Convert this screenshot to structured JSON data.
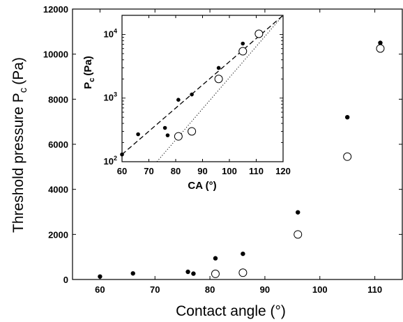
{
  "chart_data": [
    {
      "type": "scatter",
      "xlabel": "Contact angle (°)",
      "ylabel_main": "Threshold pressure P",
      "ylabel_sub": "c",
      "ylabel_unit": "(Pa)",
      "xlim": [
        55,
        115
      ],
      "ylim": [
        0,
        12000
      ],
      "xticks": [
        60,
        70,
        80,
        90,
        100,
        110
      ],
      "yticks": [
        0,
        2000,
        4000,
        6000,
        8000,
        10000,
        12000
      ],
      "series": [
        {
          "marker": "filled",
          "x": [
            60,
            66,
            76,
            77,
            81,
            86,
            96,
            105,
            111
          ],
          "y": [
            130,
            270,
            340,
            260,
            940,
            1140,
            2980,
            7200,
            10500
          ]
        },
        {
          "marker": "open",
          "x": [
            81,
            86,
            96,
            105,
            111
          ],
          "y": [
            250,
            300,
            2000,
            5450,
            10250
          ]
        }
      ]
    },
    {
      "type": "scatter",
      "role": "inset",
      "xlabel": "CA (°)",
      "ylabel_main": "P",
      "ylabel_sub": "c",
      "ylabel_unit": "(Pa)",
      "xlim": [
        60,
        120
      ],
      "ylim": [
        100,
        20000
      ],
      "yscale": "log",
      "xticks": [
        60,
        70,
        80,
        90,
        100,
        110,
        120
      ],
      "yticks": [
        {
          "value": 100,
          "base": "10",
          "exp": "2"
        },
        {
          "value": 1000,
          "base": "10",
          "exp": "3"
        },
        {
          "value": 10000,
          "base": "10",
          "exp": "4"
        }
      ],
      "series": [
        {
          "marker": "filled",
          "x": [
            60,
            66,
            76,
            77,
            81,
            86,
            96,
            105,
            111
          ],
          "y": [
            130,
            270,
            340,
            260,
            940,
            1140,
            2980,
            7200,
            10500
          ]
        },
        {
          "marker": "open",
          "x": [
            81,
            86,
            96,
            105,
            111
          ],
          "y": [
            250,
            300,
            2000,
            5450,
            10250
          ]
        }
      ],
      "fits": [
        {
          "style": "dashed",
          "x": [
            60,
            120
          ],
          "y": [
            130,
            20000
          ]
        },
        {
          "style": "dotted",
          "x": [
            73,
            120
          ],
          "y": [
            100,
            20000
          ]
        }
      ]
    }
  ]
}
